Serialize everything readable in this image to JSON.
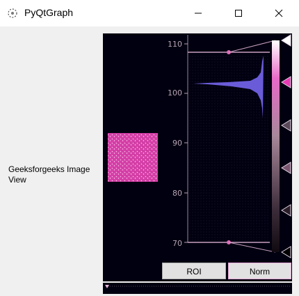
{
  "window": {
    "title": "PyQtGraph",
    "icons": [
      "app-icon",
      "minimize-icon",
      "maximize-icon",
      "close-icon"
    ]
  },
  "left_label": "Geeksforgeeks Image View",
  "histogram": {
    "axis_ticks": [
      "110",
      "100",
      "90",
      "80",
      "70"
    ],
    "level_min": 70,
    "level_max": 108,
    "colors": {
      "background": "#000010",
      "histogram_fill": "#6a5cd8",
      "image_tint": "#e040b0",
      "level_lines": "#c9a0c0"
    }
  },
  "buttons": {
    "roi": "ROI",
    "norm": "Norm"
  }
}
